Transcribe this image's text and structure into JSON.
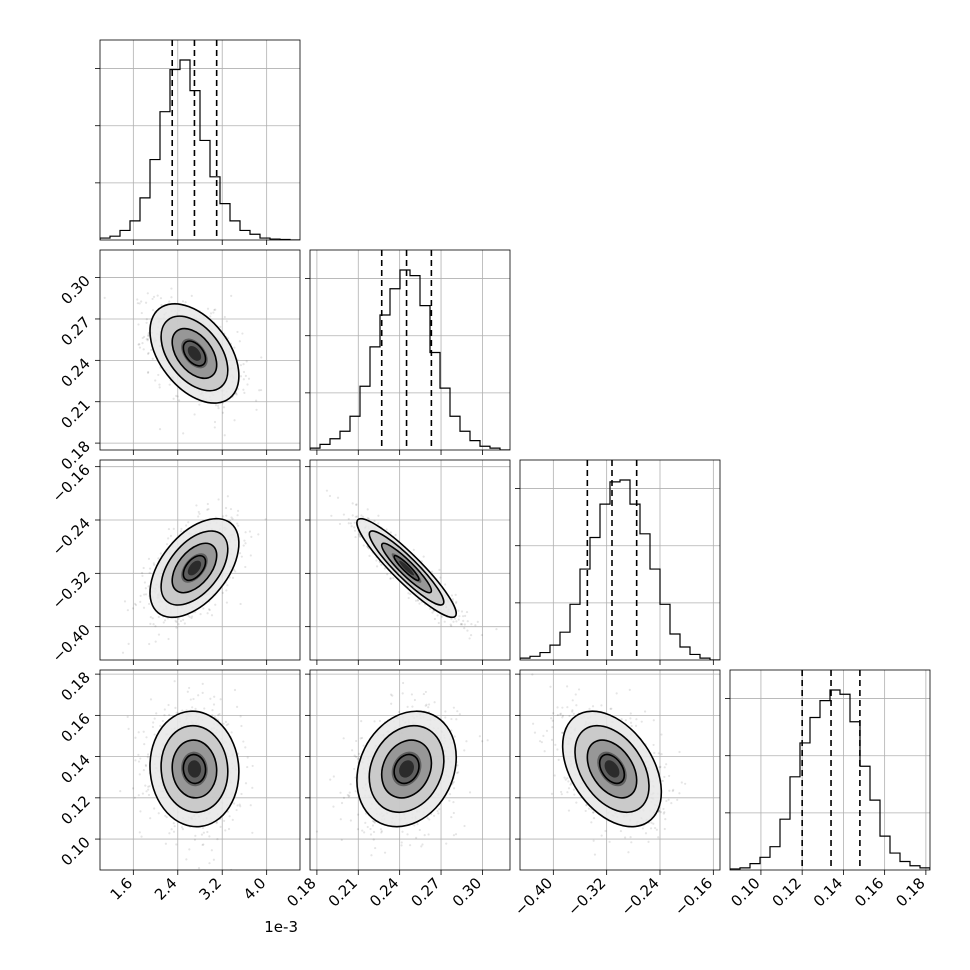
{
  "chart_data": {
    "type": "corner",
    "offset_label": "1e-3",
    "parameters": [
      {
        "index": 0,
        "mean": 0.0027,
        "std": 0.0004,
        "range": [
          0.001,
          0.0046
        ],
        "quantiles": [
          0.0023,
          0.0027,
          0.0031
        ],
        "ticks": [
          0.0016,
          0.0024,
          0.0032,
          0.004
        ],
        "tick_labels": [
          "1.6",
          "2.4",
          "3.2",
          "4.0"
        ]
      },
      {
        "index": 1,
        "mean": 0.245,
        "std": 0.018,
        "range": [
          0.175,
          0.32
        ],
        "quantiles": [
          0.227,
          0.245,
          0.263
        ],
        "ticks": [
          0.18,
          0.21,
          0.24,
          0.27,
          0.3
        ],
        "tick_labels": [
          "0.18",
          "0.21",
          "0.24",
          "0.27",
          "0.30"
        ]
      },
      {
        "index": 2,
        "mean": -0.312,
        "std": 0.037,
        "range": [
          -0.45,
          -0.15
        ],
        "quantiles": [
          -0.349,
          -0.312,
          -0.275
        ],
        "ticks": [
          -0.4,
          -0.32,
          -0.24,
          -0.16
        ],
        "tick_labels": [
          "−0.40",
          "−0.32",
          "−0.24",
          "−0.16"
        ]
      },
      {
        "index": 3,
        "mean": 0.134,
        "std": 0.014,
        "range": [
          0.085,
          0.182
        ],
        "quantiles": [
          0.12,
          0.134,
          0.148
        ],
        "ticks": [
          0.1,
          0.12,
          0.14,
          0.16,
          0.18
        ],
        "tick_labels": [
          "0.10",
          "0.12",
          "0.14",
          "0.16",
          "0.18"
        ]
      }
    ],
    "histograms": [
      {
        "param": 0,
        "counts": [
          1,
          2,
          5,
          10,
          22,
          42,
          67,
          89,
          94,
          78,
          52,
          33,
          19,
          10,
          5,
          3,
          1,
          0.5,
          0.3,
          0
        ]
      },
      {
        "param": 1,
        "counts": [
          1,
          3,
          6,
          10,
          18,
          34,
          55,
          72,
          86,
          96,
          93,
          77,
          52,
          33,
          18,
          10,
          5,
          2,
          1,
          0
        ]
      },
      {
        "param": 2,
        "counts": [
          1,
          2,
          4,
          8,
          15,
          30,
          49,
          66,
          84,
          96,
          97,
          84,
          68,
          49,
          30,
          14,
          7,
          3,
          1,
          0
        ]
      },
      {
        "param": 3,
        "counts": [
          0.5,
          1,
          3,
          6,
          11,
          24,
          44,
          60,
          72,
          80,
          85,
          83,
          70,
          49,
          33,
          16,
          8,
          4,
          2,
          1
        ]
      }
    ],
    "correlations": [
      {
        "x": 0,
        "y": 1,
        "rho": -0.45
      },
      {
        "x": 0,
        "y": 2,
        "rho": 0.5
      },
      {
        "x": 1,
        "y": 2,
        "rho": -0.92
      },
      {
        "x": 0,
        "y": 3,
        "rho": -0.05
      },
      {
        "x": 1,
        "y": 3,
        "rho": 0.2
      },
      {
        "x": 2,
        "y": 3,
        "rho": -0.4
      }
    ],
    "contour_levels_sigma": [
      0.5,
      1.0,
      1.5,
      2.0
    ],
    "grid": true
  }
}
